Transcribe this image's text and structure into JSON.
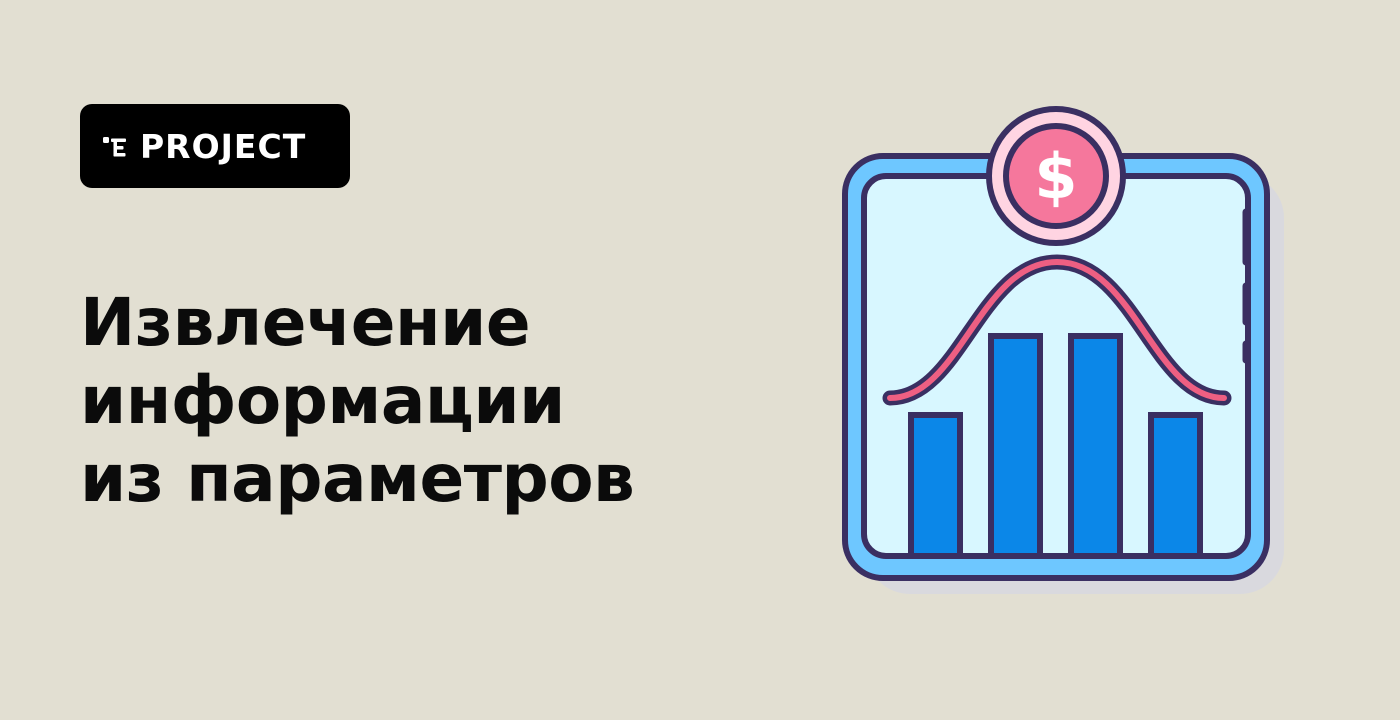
{
  "background_color": "#e2dfd2",
  "badge": {
    "label": "PROJECT",
    "icon": "project-logo-icon",
    "background": "#000000",
    "text_color": "#ffffff"
  },
  "title": {
    "lines": [
      "Извлечение",
      "информации",
      "из параметров"
    ]
  },
  "illustration": {
    "icon": "chart-with-dollar-icon",
    "coin_symbol": "$",
    "colors": {
      "outline": "#3a2f62",
      "frame": "#6ec7ff",
      "panel": "#d8f7ff",
      "bars": "#0b87e8",
      "curve": "#ee5f82",
      "coin": "#f5779c",
      "coin_ring": "#ffd4e2",
      "shadow": "#d9d9de"
    }
  }
}
